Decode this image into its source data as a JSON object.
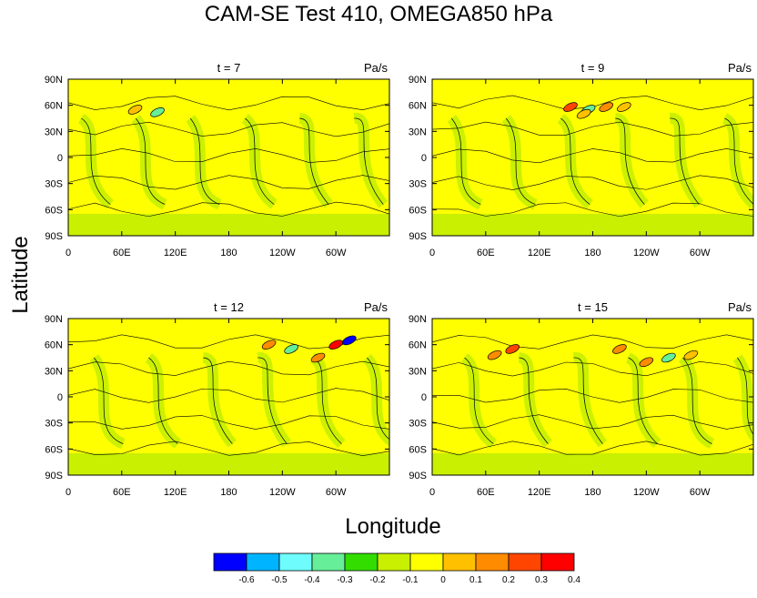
{
  "title": "CAM-SE Test 410, OMEGA850 hPa",
  "ylabel": "Latitude",
  "xlabel": "Longitude",
  "chart_data": [
    {
      "type": "heatmap",
      "panel_title": "t = 7",
      "units": "Pa/s",
      "x_ticks": [
        "0",
        "60E",
        "120E",
        "180",
        "120W",
        "60W"
      ],
      "y_ticks": [
        "90N",
        "60N",
        "30N",
        "0",
        "30S",
        "60S",
        "90S"
      ],
      "features": [
        {
          "lon": 100,
          "lat": 52,
          "omega": -0.3
        },
        {
          "lon": 75,
          "lat": 55,
          "omega": 0.1
        }
      ]
    },
    {
      "type": "heatmap",
      "panel_title": "t = 9",
      "units": "Pa/s",
      "x_ticks": [
        "0",
        "60E",
        "120E",
        "180",
        "120W",
        "60W"
      ],
      "y_ticks": [
        "90N",
        "60N",
        "30N",
        "0",
        "30S",
        "60S",
        "90S"
      ],
      "features": [
        {
          "lon": 155,
          "lat": 58,
          "omega": 0.3
        },
        {
          "lon": 175,
          "lat": 55,
          "omega": -0.3
        },
        {
          "lon": 195,
          "lat": 58,
          "omega": 0.2
        },
        {
          "lon": 215,
          "lat": 58,
          "omega": 0.1
        },
        {
          "lon": 170,
          "lat": 50,
          "omega": 0.1
        }
      ]
    },
    {
      "type": "heatmap",
      "panel_title": "t = 12",
      "units": "Pa/s",
      "x_ticks": [
        "0",
        "60E",
        "120E",
        "180",
        "120W",
        "60W"
      ],
      "y_ticks": [
        "90N",
        "60N",
        "30N",
        "0",
        "30S",
        "60S",
        "90S"
      ],
      "features": [
        {
          "lon": 225,
          "lat": 60,
          "omega": 0.2
        },
        {
          "lon": 300,
          "lat": 60,
          "omega": 0.4
        },
        {
          "lon": 315,
          "lat": 65,
          "omega": -0.6
        },
        {
          "lon": 280,
          "lat": 45,
          "omega": 0.2
        },
        {
          "lon": 250,
          "lat": 55,
          "omega": -0.3
        }
      ]
    },
    {
      "type": "heatmap",
      "panel_title": "t = 15",
      "units": "Pa/s",
      "x_ticks": [
        "0",
        "60E",
        "120E",
        "180",
        "120W",
        "60W"
      ],
      "y_ticks": [
        "90N",
        "60N",
        "30N",
        "0",
        "30S",
        "60S",
        "90S"
      ],
      "features": [
        {
          "lon": 90,
          "lat": 55,
          "omega": 0.3
        },
        {
          "lon": 70,
          "lat": 48,
          "omega": 0.2
        },
        {
          "lon": 240,
          "lat": 40,
          "omega": 0.2
        },
        {
          "lon": 265,
          "lat": 45,
          "omega": -0.3
        },
        {
          "lon": 210,
          "lat": 55,
          "omega": 0.2
        },
        {
          "lon": 290,
          "lat": 48,
          "omega": 0.1
        }
      ]
    }
  ],
  "colorbar": {
    "labels": [
      "-0.6",
      "-0.5",
      "-0.4",
      "-0.3",
      "-0.2",
      "-0.1",
      "0",
      "0.1",
      "0.2",
      "0.3",
      "0.4"
    ],
    "colors": [
      "#0000ff",
      "#00b4ff",
      "#6efcfc",
      "#66ee99",
      "#33dd00",
      "#c8f000",
      "#ffff00",
      "#ffc000",
      "#ff8c00",
      "#ff4500",
      "#ff0000"
    ]
  }
}
